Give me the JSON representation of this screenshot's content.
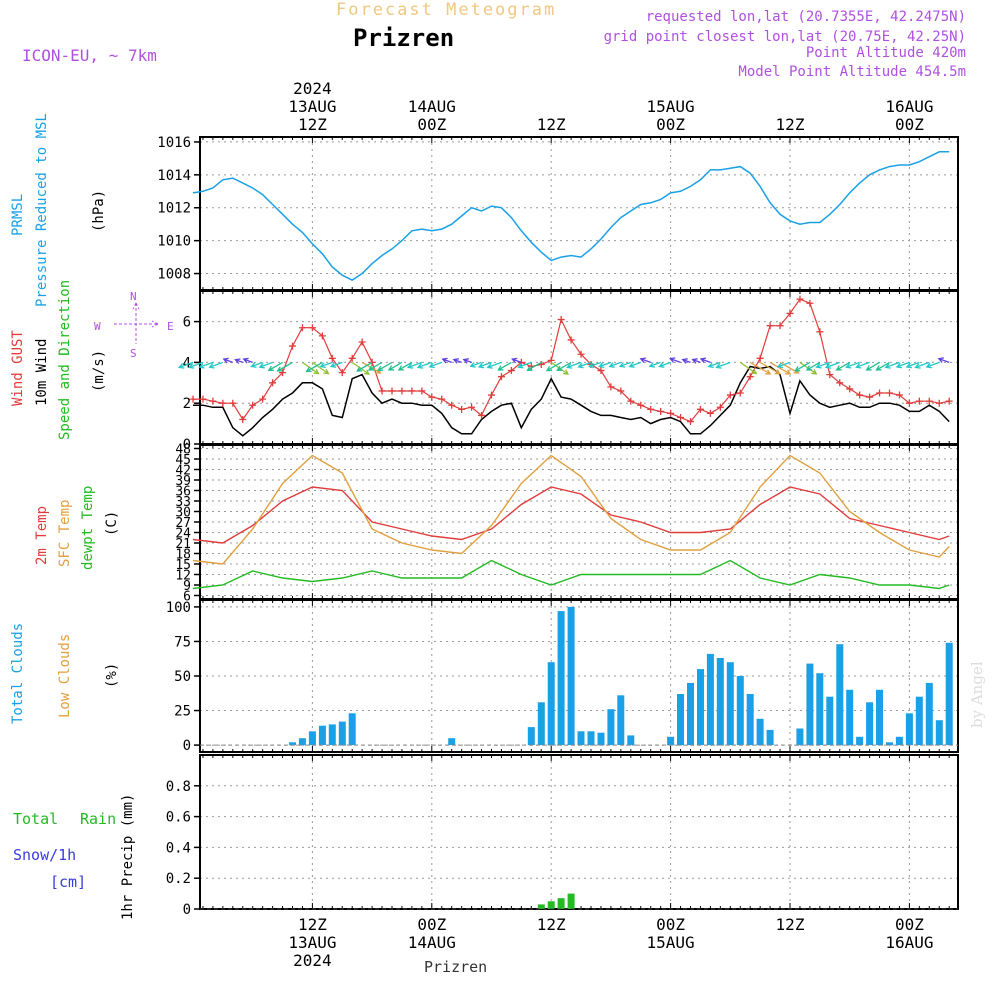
{
  "header": {
    "subtitle": "Forecast Meteogram",
    "title": "Prizren",
    "model": "ICON-EU, ~ 7km",
    "requested": "requested lon,lat (20.7355E, 42.2475N)",
    "grid_point": "grid point closest lon,lat (20.75E, 42.25N)",
    "point_altitude": "Point Altitude 420m",
    "model_altitude": "Model Point Altitude 454.5m",
    "footer_location": "Prizren",
    "watermark": "by Angel"
  },
  "colors": {
    "pressure": "#1aa0e6",
    "gust": "#e03c3c",
    "wind": "#000000",
    "temp2m": "#e03c3c",
    "sfc": "#e0a040",
    "dewpt": "#22bb22",
    "clouds_total": "#1aa0e6",
    "rain": "#22bb22",
    "snow": "#3a3ae0",
    "label_purple": "#b050e0"
  },
  "time_axis": {
    "top_labels": [
      {
        "t": 12,
        "lines": [
          "2024",
          "13AUG",
          "12Z"
        ]
      },
      {
        "t": 24,
        "lines": [
          "14AUG",
          "00Z"
        ]
      },
      {
        "t": 36,
        "lines": [
          "12Z"
        ]
      },
      {
        "t": 48,
        "lines": [
          "15AUG",
          "00Z"
        ]
      },
      {
        "t": 60,
        "lines": [
          "12Z"
        ]
      },
      {
        "t": 72,
        "lines": [
          "16AUG",
          "00Z"
        ]
      }
    ],
    "bottom_labels": [
      {
        "t": 12,
        "lines": [
          "12Z",
          "13AUG",
          "2024"
        ]
      },
      {
        "t": 24,
        "lines": [
          "00Z",
          "14AUG"
        ]
      },
      {
        "t": 36,
        "lines": [
          "12Z"
        ]
      },
      {
        "t": 48,
        "lines": [
          "00Z",
          "15AUG"
        ]
      },
      {
        "t": 60,
        "lines": [
          "12Z"
        ]
      },
      {
        "t": 72,
        "lines": [
          "00Z",
          "16AUG"
        ]
      }
    ]
  },
  "panel_labels": {
    "pressure": [
      "PRMSL",
      "Pressure Reduced to MSL",
      "(hPa)"
    ],
    "wind": [
      "Wind GUST",
      "10m Wind",
      "Speed and Direction",
      "(m/s)"
    ],
    "compass": {
      "n": "N",
      "s": "S",
      "w": "W",
      "e": "E"
    },
    "temp": [
      "2m Temp",
      "SFC Temp",
      "dewpt Temp",
      "(C)"
    ],
    "clouds": [
      "Total Clouds",
      "Low Clouds",
      "(%)"
    ],
    "precip": [
      "Total",
      "Rain",
      "Snow/1h",
      "[cm]",
      "1hr Precip (mm)"
    ]
  },
  "chart_data": [
    {
      "type": "line",
      "panel": "pressure",
      "x_unit": "hours from 2024-08-13 00Z",
      "ylim": [
        1007,
        1016.3
      ],
      "yticks": [
        1008,
        1010,
        1012,
        1014,
        1016
      ],
      "series": [
        {
          "name": "PRMSL",
          "x": [
            0,
            1,
            2,
            3,
            4,
            5,
            6,
            7,
            8,
            9,
            10,
            11,
            12,
            13,
            14,
            15,
            16,
            17,
            18,
            19,
            20,
            21,
            22,
            23,
            24,
            25,
            26,
            27,
            28,
            29,
            30,
            31,
            32,
            33,
            34,
            35,
            36,
            37,
            38,
            39,
            40,
            41,
            42,
            43,
            44,
            45,
            46,
            47,
            48,
            49,
            50,
            51,
            52,
            53,
            54,
            55,
            56,
            57,
            58,
            59,
            60,
            61,
            62,
            63,
            64,
            65,
            66,
            67,
            68,
            69,
            70,
            71,
            72,
            73,
            74,
            75,
            76
          ],
          "y": [
            1012.9,
            1013.0,
            1013.2,
            1013.7,
            1013.8,
            1013.5,
            1013.2,
            1012.8,
            1012.2,
            1011.6,
            1011.0,
            1010.5,
            1009.8,
            1009.2,
            1008.4,
            1007.9,
            1007.6,
            1008.0,
            1008.6,
            1009.1,
            1009.5,
            1010.0,
            1010.6,
            1010.7,
            1010.6,
            1010.7,
            1011.0,
            1011.5,
            1012.0,
            1011.8,
            1012.1,
            1012.0,
            1011.4,
            1010.6,
            1009.9,
            1009.3,
            1008.8,
            1009.0,
            1009.1,
            1009.0,
            1009.5,
            1010.1,
            1010.8,
            1011.4,
            1011.8,
            1012.2,
            1012.3,
            1012.5,
            1012.9,
            1013.0,
            1013.3,
            1013.7,
            1014.3,
            1014.3,
            1014.4,
            1014.5,
            1014.1,
            1013.3,
            1012.3,
            1011.6,
            1011.2,
            1011.0,
            1011.1,
            1011.1,
            1011.6,
            1012.2,
            1012.9,
            1013.5,
            1014.0,
            1014.3,
            1014.5,
            1014.6,
            1014.6,
            1014.8,
            1015.1,
            1015.4,
            1015.4
          ]
        }
      ]
    },
    {
      "type": "line",
      "panel": "wind",
      "ylim": [
        0,
        7.5
      ],
      "yticks": [
        0,
        2,
        4,
        6
      ],
      "series": [
        {
          "name": "Wind GUST",
          "x": [
            0,
            1,
            2,
            3,
            4,
            5,
            6,
            7,
            8,
            9,
            10,
            11,
            12,
            13,
            14,
            15,
            16,
            17,
            18,
            19,
            20,
            21,
            22,
            23,
            24,
            25,
            26,
            27,
            28,
            29,
            30,
            31,
            32,
            33,
            34,
            35,
            36,
            37,
            38,
            39,
            40,
            41,
            42,
            43,
            44,
            45,
            46,
            47,
            48,
            49,
            50,
            51,
            52,
            53,
            54,
            55,
            56,
            57,
            58,
            59,
            60,
            61,
            62,
            63,
            64,
            65,
            66,
            67,
            68,
            69,
            70,
            71,
            72,
            73,
            74,
            75,
            76
          ],
          "y": [
            2.2,
            2.2,
            2.1,
            2.0,
            2.0,
            1.2,
            1.9,
            2.2,
            3.0,
            3.5,
            4.8,
            5.7,
            5.7,
            5.3,
            4.2,
            3.5,
            4.2,
            5.0,
            4.0,
            2.6,
            2.6,
            2.6,
            2.6,
            2.6,
            2.3,
            2.2,
            1.9,
            1.7,
            1.8,
            1.4,
            2.4,
            3.3,
            3.6,
            4.0,
            3.8,
            3.9,
            4.1,
            6.1,
            5.1,
            4.4,
            3.9,
            3.6,
            2.8,
            2.6,
            2.1,
            1.9,
            1.7,
            1.6,
            1.5,
            1.3,
            1.1,
            1.7,
            1.5,
            1.8,
            2.4,
            2.5,
            3.3,
            4.2,
            5.8,
            5.8,
            6.4,
            7.1,
            6.9,
            5.5,
            3.4,
            3.0,
            2.7,
            2.4,
            2.3,
            2.5,
            2.5,
            2.4,
            2.0,
            2.1,
            2.1,
            2.0,
            2.1
          ]
        },
        {
          "name": "10m Wind",
          "x": [
            0,
            1,
            2,
            3,
            4,
            5,
            6,
            7,
            8,
            9,
            10,
            11,
            12,
            13,
            14,
            15,
            16,
            17,
            18,
            19,
            20,
            21,
            22,
            23,
            24,
            25,
            26,
            27,
            28,
            29,
            30,
            31,
            32,
            33,
            34,
            35,
            36,
            37,
            38,
            39,
            40,
            41,
            42,
            43,
            44,
            45,
            46,
            47,
            48,
            49,
            50,
            51,
            52,
            53,
            54,
            55,
            56,
            57,
            58,
            59,
            60,
            61,
            62,
            63,
            64,
            65,
            66,
            67,
            68,
            69,
            70,
            71,
            72,
            73,
            74,
            75,
            76
          ],
          "y": [
            1.9,
            1.9,
            1.8,
            1.8,
            0.8,
            0.4,
            0.8,
            1.3,
            1.7,
            2.2,
            2.5,
            3.0,
            3.0,
            2.7,
            1.4,
            1.3,
            3.2,
            3.4,
            2.5,
            2.0,
            2.2,
            2.0,
            2.0,
            1.9,
            1.9,
            1.5,
            0.8,
            0.5,
            0.5,
            1.2,
            1.6,
            1.9,
            2.0,
            0.8,
            1.7,
            2.2,
            3.2,
            2.3,
            2.2,
            1.9,
            1.6,
            1.4,
            1.4,
            1.3,
            1.2,
            1.3,
            1.0,
            1.2,
            1.3,
            1.1,
            0.5,
            0.5,
            0.9,
            1.4,
            1.9,
            3.0,
            3.8,
            3.7,
            3.8,
            3.4,
            1.5,
            3.1,
            2.4,
            2.0,
            1.8,
            1.9,
            2.0,
            1.8,
            1.8,
            2.0,
            2.0,
            1.9,
            1.6,
            1.6,
            1.9,
            1.6,
            1.1
          ]
        }
      ],
      "wind_direction": "arrows drawn at 4 m/s level; colours encode speed (cyan/teal light, green-orange moderate, purple/blue calm)"
    },
    {
      "type": "line",
      "panel": "temp",
      "ylim": [
        5,
        49
      ],
      "yticks": [
        6,
        9,
        12,
        15,
        18,
        21,
        24,
        27,
        30,
        33,
        36,
        39,
        42,
        45,
        48
      ],
      "series": [
        {
          "name": "2m Temp",
          "x": [
            0,
            3,
            6,
            9,
            12,
            15,
            18,
            21,
            24,
            27,
            30,
            33,
            36,
            39,
            42,
            45,
            48,
            51,
            54,
            57,
            60,
            63,
            66,
            69,
            72,
            75,
            76
          ],
          "y": [
            22,
            21,
            26,
            33,
            37,
            36,
            27,
            25,
            23,
            22,
            25,
            32,
            37,
            35,
            29,
            27,
            24,
            24,
            25,
            32,
            37,
            35,
            28,
            26,
            24,
            22,
            23
          ]
        },
        {
          "name": "SFC Temp",
          "x": [
            0,
            3,
            6,
            9,
            12,
            15,
            18,
            21,
            24,
            27,
            30,
            33,
            36,
            39,
            42,
            45,
            48,
            51,
            54,
            57,
            60,
            63,
            66,
            69,
            72,
            75,
            76
          ],
          "y": [
            16,
            15,
            25,
            38,
            46,
            41,
            25,
            21,
            19,
            18,
            26,
            38,
            46,
            40,
            28,
            22,
            19,
            19,
            24,
            37,
            46,
            41,
            30,
            24,
            19,
            17,
            20
          ]
        },
        {
          "name": "dewpt Temp",
          "x": [
            0,
            3,
            6,
            9,
            12,
            15,
            18,
            21,
            24,
            27,
            30,
            33,
            36,
            39,
            42,
            45,
            48,
            51,
            54,
            57,
            60,
            63,
            66,
            69,
            72,
            75,
            76
          ],
          "y": [
            8,
            9,
            13,
            11,
            10,
            11,
            13,
            11,
            11,
            11,
            16,
            12,
            9,
            12,
            12,
            12,
            12,
            12,
            16,
            11,
            9,
            12,
            11,
            9,
            9,
            8,
            9
          ]
        }
      ]
    },
    {
      "type": "bar",
      "panel": "clouds",
      "ylim": [
        -5,
        105
      ],
      "yticks": [
        0,
        25,
        50,
        75,
        100
      ],
      "series": [
        {
          "name": "Total Clouds",
          "x": [
            0,
            1,
            2,
            3,
            4,
            5,
            6,
            7,
            8,
            9,
            10,
            11,
            12,
            13,
            14,
            15,
            16,
            17,
            18,
            19,
            20,
            21,
            22,
            23,
            24,
            25,
            26,
            27,
            28,
            29,
            30,
            31,
            32,
            33,
            34,
            35,
            36,
            37,
            38,
            39,
            40,
            41,
            42,
            43,
            44,
            45,
            46,
            47,
            48,
            49,
            50,
            51,
            52,
            53,
            54,
            55,
            56,
            57,
            58,
            59,
            60,
            61,
            62,
            63,
            64,
            65,
            66,
            67,
            68,
            69,
            70,
            71,
            72,
            73,
            74,
            75,
            76
          ],
          "y": [
            0,
            0,
            0,
            0,
            0,
            0,
            0,
            0,
            0,
            0,
            2,
            5,
            10,
            14,
            15,
            17,
            23,
            0,
            0,
            0,
            0,
            0,
            0,
            0,
            0,
            0,
            5,
            0,
            0,
            0,
            0,
            0,
            0,
            0,
            13,
            31,
            60,
            97,
            100,
            10,
            10,
            9,
            26,
            36,
            7,
            0,
            0,
            0,
            6,
            37,
            45,
            55,
            66,
            63,
            60,
            50,
            37,
            19,
            11,
            0,
            0,
            12,
            59,
            52,
            35,
            73,
            40,
            6,
            31,
            40,
            2,
            6,
            23,
            35,
            45,
            18,
            74
          ]
        }
      ]
    },
    {
      "type": "bar",
      "panel": "precip",
      "ylim": [
        0,
        1.0
      ],
      "yticks": [
        0,
        0.2,
        0.4,
        0.6,
        0.8
      ],
      "series": [
        {
          "name": "Total Rain",
          "x": [
            35,
            36,
            37,
            38
          ],
          "y": [
            0.03,
            0.05,
            0.07,
            0.1
          ]
        }
      ]
    }
  ]
}
